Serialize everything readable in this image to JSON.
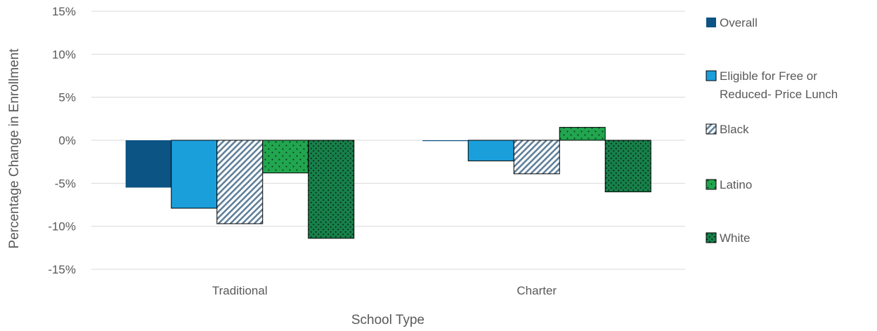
{
  "chart_data": {
    "type": "bar",
    "title": "",
    "xlabel": "School Type",
    "ylabel": "Percentage Change in Enrollment",
    "categories": [
      "Traditional",
      "Charter"
    ],
    "ylim": [
      -15,
      15
    ],
    "yticks": [
      15,
      10,
      5,
      0,
      -5,
      -10,
      -15
    ],
    "ytick_labels": [
      "15%",
      "10%",
      "5%",
      "0%",
      "-5%",
      "-10%",
      "-15%"
    ],
    "grid": true,
    "legend_position": "right",
    "series": [
      {
        "name": "Overall",
        "legend_lines": [
          "Overall"
        ],
        "color": "#0b5483",
        "pattern": "solid",
        "values": [
          -5.5,
          -0.1
        ]
      },
      {
        "name": "Eligible for Free or Reduced- Price Lunch",
        "legend_lines": [
          "Eligible for Free or",
          "Reduced- Price Lunch"
        ],
        "color": "#1a9fdb",
        "pattern": "solid",
        "values": [
          -7.9,
          -2.4
        ]
      },
      {
        "name": "Black",
        "legend_lines": [
          "Black"
        ],
        "color": "#5f7f9a",
        "pattern": "diagonal",
        "values": [
          -9.7,
          -3.9
        ]
      },
      {
        "name": "Latino",
        "legend_lines": [
          "Latino"
        ],
        "color": "#21a64f",
        "pattern": "dots-sparse",
        "values": [
          -3.8,
          1.5
        ]
      },
      {
        "name": "White",
        "legend_lines": [
          "White"
        ],
        "color": "#17804a",
        "pattern": "dots-dense",
        "values": [
          -11.4,
          -6.0
        ]
      }
    ]
  }
}
